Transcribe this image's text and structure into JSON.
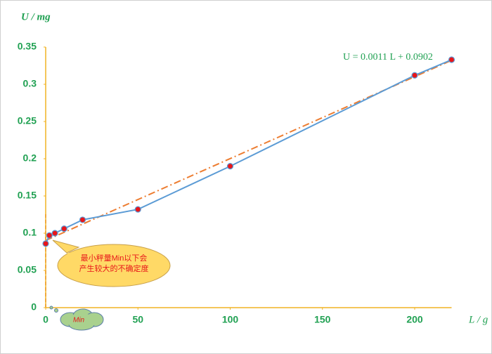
{
  "chart_data": {
    "type": "line",
    "y_label": "U / mg",
    "x_label": "L / g",
    "equation": "U = 0.0011 L + 0.0902",
    "fit": {
      "slope": 0.0011,
      "intercept": 0.0902,
      "color": "#ed7d31"
    },
    "callout": [
      "最小秤量Min以下会",
      "产生较大的不确定度"
    ],
    "cloud_label": "Min",
    "x": [
      0,
      2,
      5,
      10,
      20,
      50,
      100,
      200,
      220
    ],
    "series": [
      {
        "name": "U",
        "color": "#5b9bd5",
        "marker_color": "#e8161a",
        "values": [
          0.086,
          0.097,
          0.1,
          0.106,
          0.118,
          0.132,
          0.19,
          0.312,
          0.333
        ]
      }
    ],
    "xlim": [
      0,
      220
    ],
    "xticks": [
      0,
      50,
      100,
      150,
      200
    ],
    "ylim": [
      0,
      0.35
    ],
    "yticks": [
      0,
      0.05,
      0.1,
      0.15,
      0.2,
      0.25,
      0.3,
      0.35
    ],
    "axis_color": "#f0b323",
    "tick_color": "#21a153"
  }
}
